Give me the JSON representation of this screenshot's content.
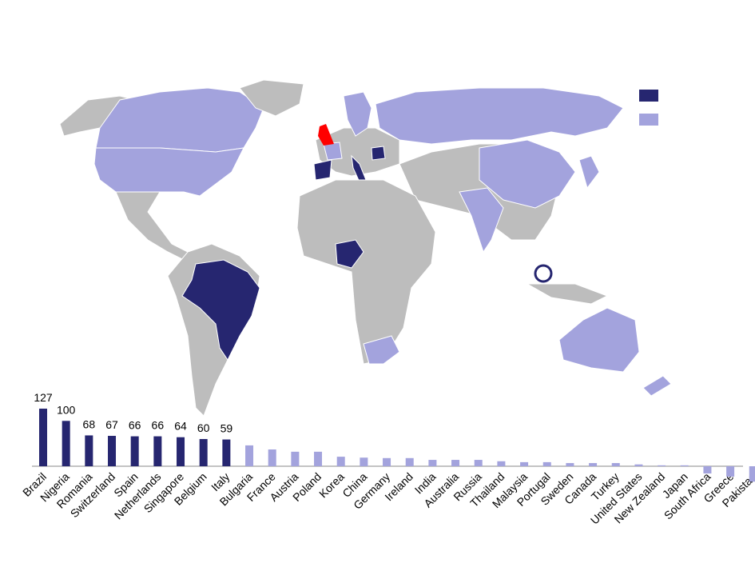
{
  "chart_data": {
    "type": "bar",
    "categories": [
      "Brazil",
      "Nigeria",
      "Romania",
      "Switzerland",
      "Spain",
      "Netherlands",
      "Singapore",
      "Belgium",
      "Italy",
      "Bulgaria",
      "France",
      "Austria",
      "Poland",
      "Korea",
      "China",
      "Germany",
      "Ireland",
      "India",
      "Australia",
      "Russia",
      "Thailand",
      "Malaysia",
      "Portugal",
      "Sweden",
      "Canada",
      "Turkey",
      "United States",
      "New Zealand",
      "Japan",
      "South Africa",
      "Greece",
      "Pakistan"
    ],
    "series": [
      {
        "color": "#262670",
        "data_labels": true,
        "values": [
          127,
          100,
          68,
          67,
          66,
          66,
          64,
          60,
          59,
          null,
          null,
          null,
          null,
          null,
          null,
          null,
          null,
          null,
          null,
          null,
          null,
          null,
          null,
          null,
          null,
          null,
          null,
          null,
          null,
          null,
          null,
          null
        ]
      },
      {
        "color": "#a3a3dd",
        "data_labels": false,
        "values": [
          null,
          null,
          null,
          null,
          null,
          null,
          null,
          null,
          null,
          46,
          37,
          32,
          32,
          21,
          19,
          18,
          18,
          14,
          14,
          14,
          11,
          9,
          9,
          7,
          7,
          7,
          4,
          2,
          2,
          -16,
          -23,
          -34
        ]
      }
    ]
  }
}
